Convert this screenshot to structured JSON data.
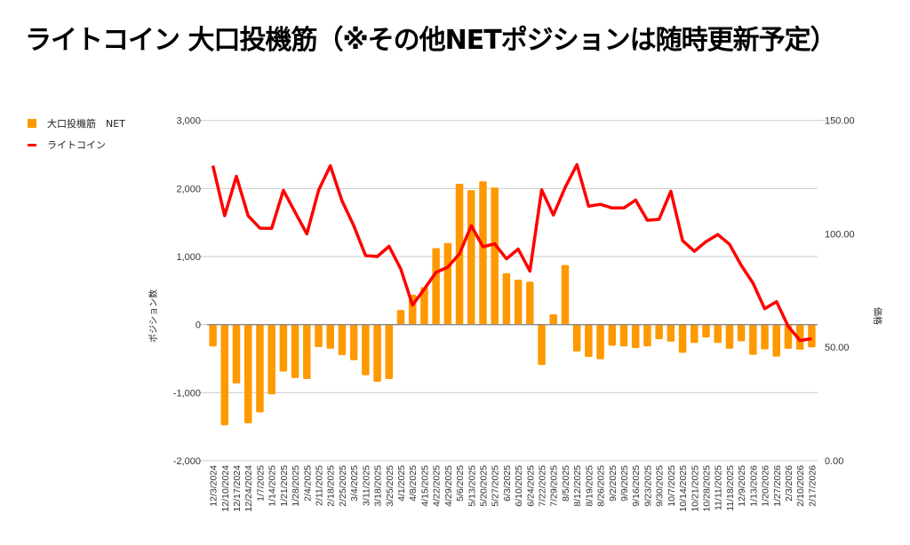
{
  "title": "ライトコイン 大口投機筋（※その他NETポジションは随時更新予定）",
  "chart_data": {
    "type": "bar+line",
    "title": "ライトコイン 大口投機筋（※その他NETポジションは随時更新予定）",
    "xlabel": "",
    "ylabel_left": "ポジション数",
    "ylabel_right": "価格",
    "ylim_left": [
      -2000,
      3000
    ],
    "ylim_right": [
      0,
      150
    ],
    "left_ticks": [
      "3,000",
      "2,000",
      "1,000",
      "0",
      "-1,000",
      "-2,000"
    ],
    "left_tick_values": [
      3000,
      2000,
      1000,
      0,
      -1000,
      -2000
    ],
    "right_ticks": [
      "150.00",
      "100.00",
      "50.00",
      "0.00"
    ],
    "right_tick_values": [
      150,
      100,
      50,
      0
    ],
    "grid": true,
    "legend_position": "top-left",
    "colors": {
      "bar": "#ff9900",
      "line": "#ff0000",
      "grid": "#cccccc",
      "zero": "#888888"
    },
    "categories": [
      "12/3/2024",
      "12/10/2024",
      "12/17/2024",
      "12/24/2024",
      "1/7/2025",
      "1/14/2025",
      "1/21/2025",
      "1/28/2025",
      "2/4/2025",
      "2/11/2025",
      "2/18/2025",
      "2/25/2025",
      "3/4/2025",
      "3/11/2025",
      "3/18/2025",
      "3/25/2025",
      "4/1/2025",
      "4/8/2025",
      "4/15/2025",
      "4/22/2025",
      "4/29/2025",
      "5/6/2025",
      "5/13/2025",
      "5/20/2025",
      "5/27/2025",
      "6/3/2025",
      "6/10/2025",
      "6/24/2025",
      "7/22/2025",
      "7/29/2025",
      "8/5/2025",
      "8/12/2025",
      "8/19/2025",
      "8/26/2025",
      "9/2/2025",
      "9/9/2025",
      "9/16/2025",
      "9/23/2025",
      "9/30/2025",
      "10/7/2025",
      "10/14/2025",
      "10/21/2025",
      "10/28/2025",
      "11/11/2025",
      "11/18/2025",
      "12/9/2025",
      "1/13/2026",
      "1/20/2026",
      "1/27/2026",
      "2/3/2026",
      "2/10/2026",
      "2/17/2026"
    ],
    "series": [
      {
        "name": "大口投機筋　NET",
        "type": "bar",
        "axis": "left",
        "values": [
          -320,
          -1480,
          -865,
          -1450,
          -1290,
          -1025,
          -690,
          -785,
          -800,
          -330,
          -355,
          -450,
          -525,
          -745,
          -840,
          -800,
          215,
          440,
          550,
          1125,
          1200,
          2070,
          1975,
          2105,
          2015,
          755,
          660,
          630,
          -595,
          150,
          875,
          -395,
          -475,
          -510,
          -310,
          -320,
          -345,
          -320,
          -215,
          -250,
          -415,
          -270,
          -190,
          -270,
          -355,
          -245,
          -445,
          -365,
          -470,
          -355,
          -370,
          -335
        ]
      },
      {
        "name": "ライトコイン",
        "type": "line",
        "axis": "right",
        "values": [
          130.1,
          108,
          125.4,
          108,
          102.5,
          102.4,
          119.2,
          109.5,
          100,
          119.2,
          130,
          114.5,
          103.6,
          90.4,
          90,
          94.5,
          84.5,
          68.6,
          75.6,
          83,
          85.3,
          91.2,
          103.6,
          94.3,
          95.6,
          89,
          93.3,
          83.6,
          119.4,
          108.3,
          120.5,
          130.5,
          112.2,
          113,
          111.4,
          111.4,
          114.9,
          106,
          106.4,
          118.8,
          97,
          92.3,
          96.6,
          99.7,
          95.4,
          86.1,
          78.3,
          67,
          70.1,
          59.2,
          53,
          53.8
        ]
      }
    ]
  }
}
